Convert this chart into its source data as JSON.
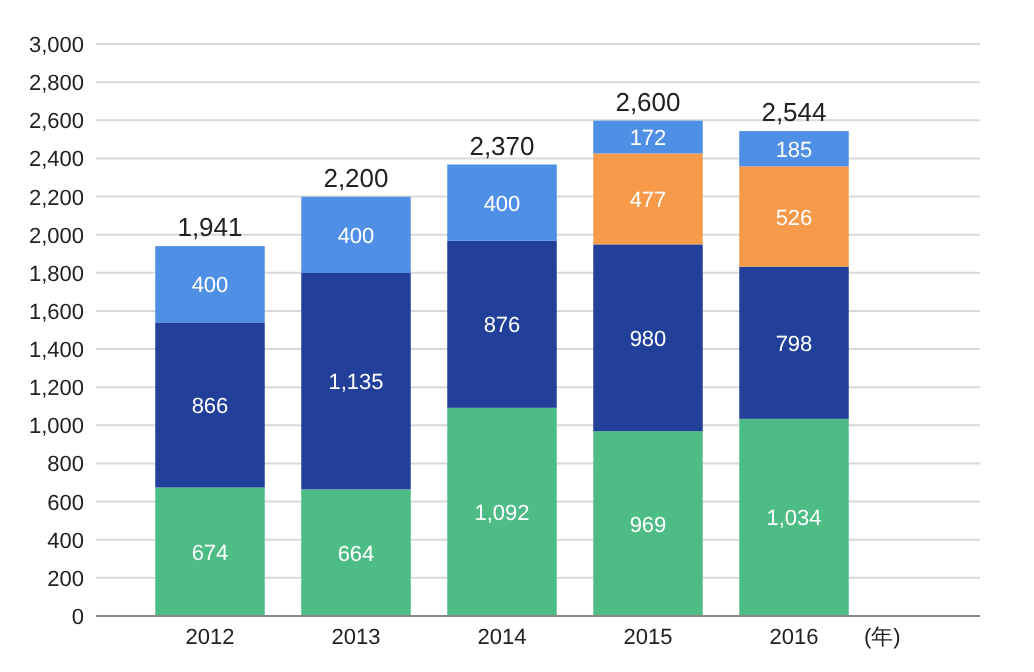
{
  "chart_data": {
    "type": "bar",
    "stacked": true,
    "categories": [
      "2012",
      "2013",
      "2014",
      "2015",
      "2016"
    ],
    "xlabel": "(年)",
    "series": [
      {
        "color": "#4dbd85",
        "values": [
          674,
          664,
          1092,
          969,
          1034
        ],
        "value_labels": [
          "674",
          "664",
          "1,092",
          "969",
          "1,034"
        ]
      },
      {
        "color": "#22409a",
        "values": [
          866,
          1135,
          876,
          980,
          798
        ],
        "value_labels": [
          "866",
          "1,135",
          "876",
          "980",
          "798"
        ]
      },
      {
        "color": "#f79a4a",
        "values": [
          null,
          null,
          null,
          477,
          526
        ],
        "value_labels": [
          null,
          null,
          null,
          "477",
          "526"
        ]
      },
      {
        "color": "#4f8fe6",
        "values": [
          400,
          400,
          400,
          172,
          185
        ],
        "value_labels": [
          "400",
          "400",
          "400",
          "172",
          "185"
        ]
      }
    ],
    "totals": [
      "1,941",
      "2,200",
      "2,370",
      "2,600",
      "2,544"
    ],
    "ylim": [
      0,
      3000
    ],
    "yticks": [
      {
        "value": 0,
        "label": "0"
      },
      {
        "value": 200,
        "label": "200"
      },
      {
        "value": 400,
        "label": "400"
      },
      {
        "value": 600,
        "label": "600"
      },
      {
        "value": 800,
        "label": "800"
      },
      {
        "value": 1000,
        "label": "1,000"
      },
      {
        "value": 1200,
        "label": "1,200"
      },
      {
        "value": 1400,
        "label": "1,400"
      },
      {
        "value": 1600,
        "label": "1,600"
      },
      {
        "value": 1800,
        "label": "1,800"
      },
      {
        "value": 2000,
        "label": "2,000"
      },
      {
        "value": 2200,
        "label": "2,200"
      },
      {
        "value": 2400,
        "label": "2,400"
      },
      {
        "value": 2600,
        "label": "2,600"
      },
      {
        "value": 2800,
        "label": "2,800"
      },
      {
        "value": 3000,
        "label": "3,000"
      }
    ],
    "grid": "y"
  }
}
